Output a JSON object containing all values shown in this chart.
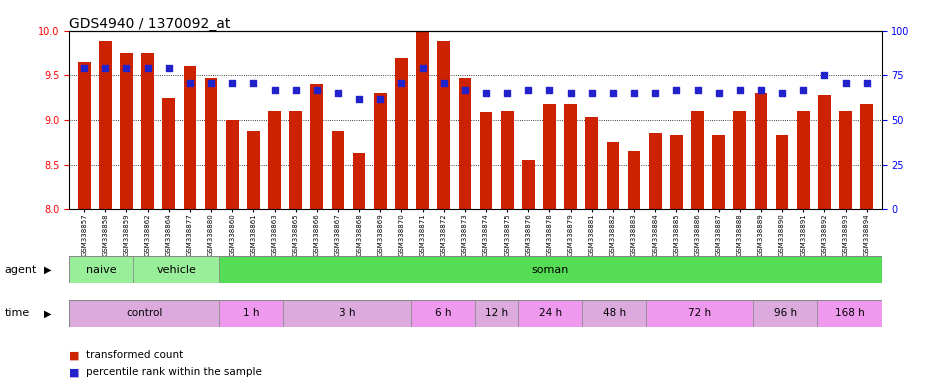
{
  "title": "GDS4940 / 1370092_at",
  "samples": [
    "GSM338857",
    "GSM338858",
    "GSM338859",
    "GSM338862",
    "GSM338864",
    "GSM338877",
    "GSM338880",
    "GSM338860",
    "GSM338861",
    "GSM338863",
    "GSM338865",
    "GSM338866",
    "GSM338867",
    "GSM338868",
    "GSM338869",
    "GSM338870",
    "GSM338871",
    "GSM338872",
    "GSM338873",
    "GSM338874",
    "GSM338875",
    "GSM338876",
    "GSM338878",
    "GSM338879",
    "GSM338881",
    "GSM338882",
    "GSM338883",
    "GSM338884",
    "GSM338885",
    "GSM338886",
    "GSM338887",
    "GSM338888",
    "GSM338889",
    "GSM338890",
    "GSM338891",
    "GSM338892",
    "GSM338893",
    "GSM338894"
  ],
  "bar_values": [
    9.65,
    9.88,
    9.75,
    9.75,
    9.25,
    9.6,
    9.47,
    9.0,
    8.88,
    9.1,
    9.1,
    9.4,
    8.88,
    8.63,
    9.3,
    9.7,
    10.0,
    9.88,
    9.47,
    9.09,
    9.1,
    8.55,
    9.18,
    9.18,
    9.03,
    8.75,
    8.65,
    8.85,
    8.83,
    9.1,
    8.83,
    9.1,
    9.3,
    8.83,
    9.1,
    9.28,
    9.1,
    9.18
  ],
  "percentile_values": [
    79,
    79,
    79,
    79,
    79,
    71,
    71,
    71,
    71,
    67,
    67,
    67,
    65,
    62,
    62,
    71,
    79,
    71,
    67,
    65,
    65,
    67,
    67,
    65,
    65,
    65,
    65,
    65,
    67,
    67,
    65,
    67,
    67,
    65,
    67,
    75,
    71,
    71
  ],
  "bar_color": "#cc2200",
  "dot_color": "#2222cc",
  "ylim_left": [
    8.0,
    10.0
  ],
  "ylim_right": [
    0,
    100
  ],
  "yticks_left": [
    8.0,
    8.5,
    9.0,
    9.5,
    10.0
  ],
  "yticks_right": [
    0,
    25,
    50,
    75,
    100
  ],
  "agent_groups": [
    {
      "label": "naive",
      "start": 0,
      "end": 3
    },
    {
      "label": "vehicle",
      "start": 3,
      "end": 7
    },
    {
      "label": "soman",
      "start": 7,
      "end": 38
    }
  ],
  "agent_dividers": [
    3,
    7
  ],
  "time_groups": [
    {
      "label": "control",
      "start": 0,
      "end": 7
    },
    {
      "label": "1 h",
      "start": 7,
      "end": 10
    },
    {
      "label": "3 h",
      "start": 10,
      "end": 16
    },
    {
      "label": "6 h",
      "start": 16,
      "end": 19
    },
    {
      "label": "12 h",
      "start": 19,
      "end": 21
    },
    {
      "label": "24 h",
      "start": 21,
      "end": 24
    },
    {
      "label": "48 h",
      "start": 24,
      "end": 27
    },
    {
      "label": "72 h",
      "start": 27,
      "end": 32
    },
    {
      "label": "96 h",
      "start": 32,
      "end": 35
    },
    {
      "label": "168 h",
      "start": 35,
      "end": 38
    }
  ],
  "agent_colors": [
    "#99ee99",
    "#99ee99",
    "#55dd55"
  ],
  "time_colors": [
    "#ddaadd",
    "#ee99ee",
    "#ddaadd",
    "#ee99ee",
    "#ddaadd",
    "#ee99ee",
    "#ddaadd",
    "#ee99ee",
    "#ddaadd",
    "#ee99ee"
  ],
  "legend_bar_label": "transformed count",
  "legend_dot_label": "percentile rank within the sample",
  "title_fontsize": 10,
  "tick_fontsize": 7,
  "bar_width": 0.6
}
